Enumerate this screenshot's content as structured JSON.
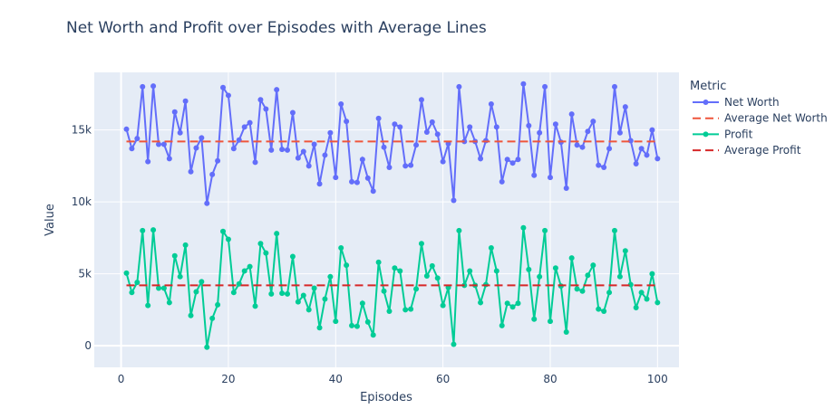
{
  "chart_data": {
    "type": "line",
    "title": "Net Worth and Profit over Episodes with Average Lines",
    "xlabel": "Episodes",
    "ylabel": "Value",
    "xlim": [
      -5,
      104
    ],
    "ylim": [
      -1500,
      19000
    ],
    "x_ticks": [
      0,
      20,
      40,
      60,
      80,
      100
    ],
    "x_tick_labels": [
      "0",
      "20",
      "40",
      "60",
      "80",
      "100"
    ],
    "y_ticks": [
      0,
      5000,
      10000,
      15000
    ],
    "y_tick_labels": [
      "0",
      "5k",
      "10k",
      "15k"
    ],
    "legend_title": "Metric",
    "legend_position": "right",
    "series": [
      {
        "name": "Net Worth",
        "color": "#636efa",
        "style": "lines+markers",
        "x": [
          1,
          2,
          3,
          4,
          5,
          6,
          7,
          8,
          9,
          10,
          11,
          12,
          13,
          14,
          15,
          16,
          17,
          18,
          19,
          20,
          21,
          22,
          23,
          24,
          25,
          26,
          27,
          28,
          29,
          30,
          31,
          32,
          33,
          34,
          35,
          36,
          37,
          38,
          39,
          40,
          41,
          42,
          43,
          44,
          45,
          46,
          47,
          48,
          49,
          50,
          51,
          52,
          53,
          54,
          55,
          56,
          57,
          58,
          59,
          60,
          61,
          62,
          63,
          64,
          65,
          66,
          67,
          68,
          69,
          70,
          71,
          72,
          73,
          74,
          75,
          76,
          77,
          78,
          79,
          80,
          81,
          82,
          83,
          84,
          85,
          86,
          87,
          88,
          89,
          90,
          91,
          92,
          93,
          94,
          95,
          96,
          97,
          98,
          99,
          100
        ],
        "values": [
          15050,
          13700,
          14400,
          18000,
          12800,
          18050,
          14000,
          14000,
          13000,
          16250,
          14800,
          17000,
          12100,
          13750,
          14450,
          9900,
          11900,
          12850,
          17950,
          17400,
          13700,
          14300,
          15200,
          15500,
          12750,
          17100,
          16450,
          13600,
          17800,
          13650,
          13600,
          16200,
          13050,
          13500,
          12500,
          14000,
          11250,
          13250,
          14800,
          11700,
          16800,
          15600,
          11400,
          11350,
          12950,
          11650,
          10750,
          15800,
          13800,
          12400,
          15400,
          15200,
          12500,
          12550,
          13950,
          17100,
          14850,
          15550,
          14700,
          12800,
          14050,
          10100,
          18000,
          14200,
          15200,
          14200,
          13000,
          14250,
          16800,
          15200,
          11400,
          12950,
          12700,
          12950,
          18200,
          15300,
          11850,
          14800,
          18000,
          11700,
          15400,
          14150,
          10950,
          16100,
          13950,
          13800,
          14900,
          15600,
          12550,
          12400,
          13700,
          18000,
          14800,
          16600,
          14250,
          12650,
          13700,
          13250,
          15000,
          13000
        ]
      },
      {
        "name": "Average Net Worth",
        "color": "#ef553b",
        "style": "dash",
        "x": [
          1,
          100
        ],
        "values": [
          14200,
          14200
        ]
      },
      {
        "name": "Profit",
        "color": "#00cc96",
        "style": "lines+markers",
        "x": [
          1,
          2,
          3,
          4,
          5,
          6,
          7,
          8,
          9,
          10,
          11,
          12,
          13,
          14,
          15,
          16,
          17,
          18,
          19,
          20,
          21,
          22,
          23,
          24,
          25,
          26,
          27,
          28,
          29,
          30,
          31,
          32,
          33,
          34,
          35,
          36,
          37,
          38,
          39,
          40,
          41,
          42,
          43,
          44,
          45,
          46,
          47,
          48,
          49,
          50,
          51,
          52,
          53,
          54,
          55,
          56,
          57,
          58,
          59,
          60,
          61,
          62,
          63,
          64,
          65,
          66,
          67,
          68,
          69,
          70,
          71,
          72,
          73,
          74,
          75,
          76,
          77,
          78,
          79,
          80,
          81,
          82,
          83,
          84,
          85,
          86,
          87,
          88,
          89,
          90,
          91,
          92,
          93,
          94,
          95,
          96,
          97,
          98,
          99,
          100
        ],
        "values": [
          5050,
          3700,
          4400,
          8000,
          2800,
          8050,
          4000,
          4000,
          3000,
          6250,
          4800,
          7000,
          2100,
          3750,
          4450,
          -100,
          1900,
          2850,
          7950,
          7400,
          3700,
          4300,
          5200,
          5500,
          2750,
          7100,
          6450,
          3600,
          7800,
          3650,
          3600,
          6200,
          3050,
          3500,
          2500,
          4000,
          1250,
          3250,
          4800,
          1700,
          6800,
          5600,
          1400,
          1350,
          2950,
          1650,
          750,
          5800,
          3800,
          2400,
          5400,
          5200,
          2500,
          2550,
          3950,
          7100,
          4850,
          5550,
          4700,
          2800,
          4050,
          100,
          8000,
          4200,
          5200,
          4200,
          3000,
          4250,
          6800,
          5200,
          1400,
          2950,
          2700,
          2950,
          8200,
          5300,
          1850,
          4800,
          8000,
          1700,
          5400,
          4150,
          950,
          6100,
          3950,
          3800,
          4900,
          5600,
          2550,
          2400,
          3700,
          8000,
          4800,
          6600,
          4250,
          2650,
          3700,
          3250,
          5000,
          3000
        ]
      },
      {
        "name": "Average Profit",
        "color": "#d62728",
        "style": "dash",
        "x": [
          1,
          100
        ],
        "values": [
          4200,
          4200
        ]
      }
    ]
  }
}
